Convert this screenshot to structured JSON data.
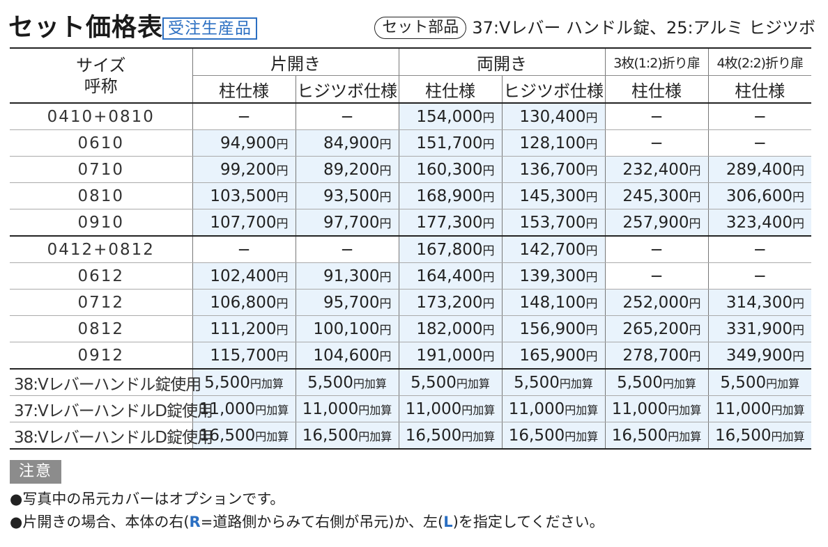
{
  "title": "セット価格表",
  "badge": "受注生産品",
  "parts_label": "セット部品",
  "parts_text": "37:Vレバー ハンドル錠、25:アルミ ヒジツボ",
  "headers": {
    "size_line1": "サイズ",
    "size_line2": "呼称",
    "groups": [
      "片開き",
      "両開き",
      "3枚(1:2)折り扉",
      "4枚(2:2)折り扉"
    ],
    "sub": [
      "柱仕様",
      "ヒジツボ仕様",
      "柱仕様",
      "ヒジツボ仕様",
      "柱仕様",
      "柱仕様"
    ]
  },
  "yen": "円",
  "dash": "−",
  "add_suffix": "円加算",
  "rows": [
    {
      "size": "0410+0810",
      "cells": [
        "−",
        "−",
        "154,000",
        "130,400",
        "−",
        "−"
      ]
    },
    {
      "size": "0610",
      "cells": [
        "94,900",
        "84,900",
        "151,700",
        "128,100",
        "−",
        "−"
      ]
    },
    {
      "size": "0710",
      "cells": [
        "99,200",
        "89,200",
        "160,300",
        "136,700",
        "232,400",
        "289,400"
      ]
    },
    {
      "size": "0810",
      "cells": [
        "103,500",
        "93,500",
        "168,900",
        "145,300",
        "245,300",
        "306,600"
      ]
    },
    {
      "size": "0910",
      "cells": [
        "107,700",
        "97,700",
        "177,300",
        "153,700",
        "257,900",
        "323,400"
      ]
    },
    {
      "size": "0412+0812",
      "cells": [
        "−",
        "−",
        "167,800",
        "142,700",
        "−",
        "−"
      ]
    },
    {
      "size": "0612",
      "cells": [
        "102,400",
        "91,300",
        "164,400",
        "139,300",
        "−",
        "−"
      ]
    },
    {
      "size": "0712",
      "cells": [
        "106,800",
        "95,700",
        "173,200",
        "148,100",
        "252,000",
        "314,300"
      ]
    },
    {
      "size": "0812",
      "cells": [
        "111,200",
        "100,100",
        "182,000",
        "156,900",
        "265,200",
        "331,900"
      ]
    },
    {
      "size": "0912",
      "cells": [
        "115,700",
        "104,600",
        "191,000",
        "165,900",
        "278,700",
        "349,900"
      ]
    }
  ],
  "options": [
    {
      "label": "38:Vレバーハンドル錠使用",
      "amount": "5,500"
    },
    {
      "label": "37:VレバーハンドルD錠使用",
      "amount": "11,000"
    },
    {
      "label": "38:VレバーハンドルD錠使用",
      "amount": "16,500"
    }
  ],
  "notice_label": "注意",
  "notes": {
    "note1": "●写真中の吊元カバーはオプションです。",
    "note2_a": "●片開きの場合、本体の右(",
    "note2_r": "R",
    "note2_b": "=道路側からみて右側が吊元)か、左(",
    "note2_l": "L",
    "note2_c": ")を指定してください。"
  },
  "colors": {
    "accent": "#2b6fc2",
    "shade": "#e9f3fc",
    "notice_bg": "#8c8c8c"
  }
}
